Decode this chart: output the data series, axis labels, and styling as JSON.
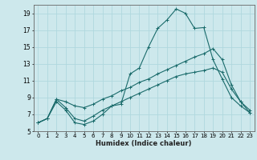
{
  "xlabel": "Humidex (Indice chaleur)",
  "bg_color": "#cde8ec",
  "grid_color": "#b0d8de",
  "line_color": "#1a6b6b",
  "xlim": [
    -0.5,
    23.5
  ],
  "ylim": [
    5,
    20
  ],
  "xticks": [
    0,
    1,
    2,
    3,
    4,
    5,
    6,
    7,
    8,
    9,
    10,
    11,
    12,
    13,
    14,
    15,
    16,
    17,
    18,
    19,
    20,
    21,
    22,
    23
  ],
  "yticks": [
    5,
    7,
    9,
    11,
    13,
    15,
    17,
    19
  ],
  "series1_x": [
    0,
    1,
    2,
    3,
    4,
    5,
    6,
    7,
    8,
    9,
    10,
    11,
    12,
    13,
    14,
    15,
    16,
    17,
    18,
    19,
    20,
    21,
    22,
    23
  ],
  "series1_y": [
    6.0,
    6.5,
    8.5,
    7.5,
    6.0,
    5.8,
    6.2,
    7.0,
    8.0,
    8.2,
    11.8,
    12.5,
    15.0,
    17.2,
    18.2,
    19.5,
    19.0,
    17.2,
    17.3,
    13.5,
    11.2,
    9.0,
    8.0,
    7.2
  ],
  "series2_x": [
    0,
    1,
    2,
    3,
    4,
    5,
    6,
    7,
    8,
    9,
    10,
    11,
    12,
    13,
    14,
    15,
    16,
    17,
    18,
    19,
    20,
    21,
    22,
    23
  ],
  "series2_y": [
    6.0,
    6.5,
    8.8,
    8.5,
    8.0,
    7.8,
    8.2,
    8.8,
    9.2,
    9.8,
    10.2,
    10.8,
    11.2,
    11.8,
    12.3,
    12.8,
    13.3,
    13.8,
    14.2,
    14.8,
    13.5,
    10.5,
    8.5,
    7.5
  ],
  "series3_x": [
    0,
    1,
    2,
    3,
    4,
    5,
    6,
    7,
    8,
    9,
    10,
    11,
    12,
    13,
    14,
    15,
    16,
    17,
    18,
    19,
    20,
    21,
    22,
    23
  ],
  "series3_y": [
    6.0,
    6.5,
    8.8,
    7.8,
    6.5,
    6.2,
    6.8,
    7.5,
    8.0,
    8.5,
    9.0,
    9.5,
    10.0,
    10.5,
    11.0,
    11.5,
    11.8,
    12.0,
    12.2,
    12.5,
    12.0,
    10.0,
    8.5,
    7.2
  ],
  "xlabel_fontsize": 6,
  "tick_fontsize": 5,
  "linewidth": 0.8,
  "markersize": 3
}
